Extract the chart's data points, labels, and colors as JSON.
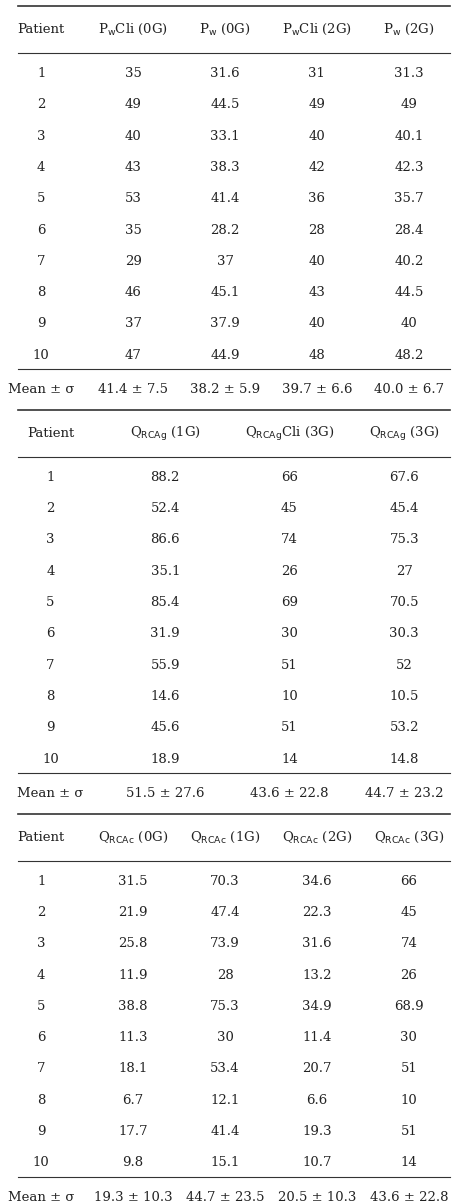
{
  "table1": {
    "headers": [
      "Patient",
      "PₓCli (0G)",
      "Pₓ (0G)",
      "PₓCli (2G)",
      "Pₓ (2G)"
    ],
    "header_subs": [
      "",
      "w",
      "w",
      "w",
      "w"
    ],
    "rows": [
      [
        "1",
        "35",
        "31.6",
        "31",
        "31.3"
      ],
      [
        "2",
        "49",
        "44.5",
        "49",
        "49"
      ],
      [
        "3",
        "40",
        "33.1",
        "40",
        "40.1"
      ],
      [
        "4",
        "43",
        "38.3",
        "42",
        "42.3"
      ],
      [
        "5",
        "53",
        "41.4",
        "36",
        "35.7"
      ],
      [
        "6",
        "35",
        "28.2",
        "28",
        "28.4"
      ],
      [
        "7",
        "29",
        "37",
        "40",
        "40.2"
      ],
      [
        "8",
        "46",
        "45.1",
        "43",
        "44.5"
      ],
      [
        "9",
        "37",
        "37.9",
        "40",
        "40"
      ],
      [
        "10",
        "47",
        "44.9",
        "48",
        "48.2"
      ]
    ],
    "mean_row": [
      "Mean ± σ",
      "41.4 ± 7.5",
      "38.2 ± 5.9",
      "39.7 ± 6.6",
      "40.0 ± 6.7"
    ]
  },
  "table2": {
    "headers": [
      "Patient",
      "Q_RCAg (1G)",
      "Q_RCAg Cli (3G)",
      "Q_RCAg (3G)"
    ],
    "rows": [
      [
        "1",
        "88.2",
        "66",
        "67.6"
      ],
      [
        "2",
        "52.4",
        "45",
        "45.4"
      ],
      [
        "3",
        "86.6",
        "74",
        "75.3"
      ],
      [
        "4",
        "35.1",
        "26",
        "27"
      ],
      [
        "5",
        "85.4",
        "69",
        "70.5"
      ],
      [
        "6",
        "31.9",
        "30",
        "30.3"
      ],
      [
        "7",
        "55.9",
        "51",
        "52"
      ],
      [
        "8",
        "14.6",
        "10",
        "10.5"
      ],
      [
        "9",
        "45.6",
        "51",
        "53.2"
      ],
      [
        "10",
        "18.9",
        "14",
        "14.8"
      ]
    ],
    "mean_row": [
      "Mean ± σ",
      "51.5 ± 27.6",
      "43.6 ± 22.8",
      "44.7 ± 23.2"
    ]
  },
  "table3": {
    "headers": [
      "Patient",
      "Q_RCAc (0G)",
      "Q_RCAc (1G)",
      "Q_RCAc (2G)",
      "Q_RCAc (3G)"
    ],
    "rows": [
      [
        "1",
        "31.5",
        "70.3",
        "34.6",
        "66"
      ],
      [
        "2",
        "21.9",
        "47.4",
        "22.3",
        "45"
      ],
      [
        "3",
        "25.8",
        "73.9",
        "31.6",
        "74"
      ],
      [
        "4",
        "11.9",
        "28",
        "13.2",
        "26"
      ],
      [
        "5",
        "38.8",
        "75.3",
        "34.9",
        "68.9"
      ],
      [
        "6",
        "11.3",
        "30",
        "11.4",
        "30"
      ],
      [
        "7",
        "18.1",
        "53.4",
        "20.7",
        "51"
      ],
      [
        "8",
        "6.7",
        "12.1",
        "6.6",
        "10"
      ],
      [
        "9",
        "17.7",
        "41.4",
        "19.3",
        "51"
      ],
      [
        "10",
        "9.8",
        "15.1",
        "10.7",
        "14"
      ]
    ],
    "mean_row": [
      "Mean ± σ",
      "19.3 ± 10.3",
      "44.7 ± 23.5",
      "20.5 ± 10.3",
      "43.6 ± 22.8"
    ]
  },
  "font_size": 9.5,
  "header_font_size": 9.5,
  "mean_font_size": 9.5,
  "bg_color": "#ffffff",
  "line_color": "#555555"
}
